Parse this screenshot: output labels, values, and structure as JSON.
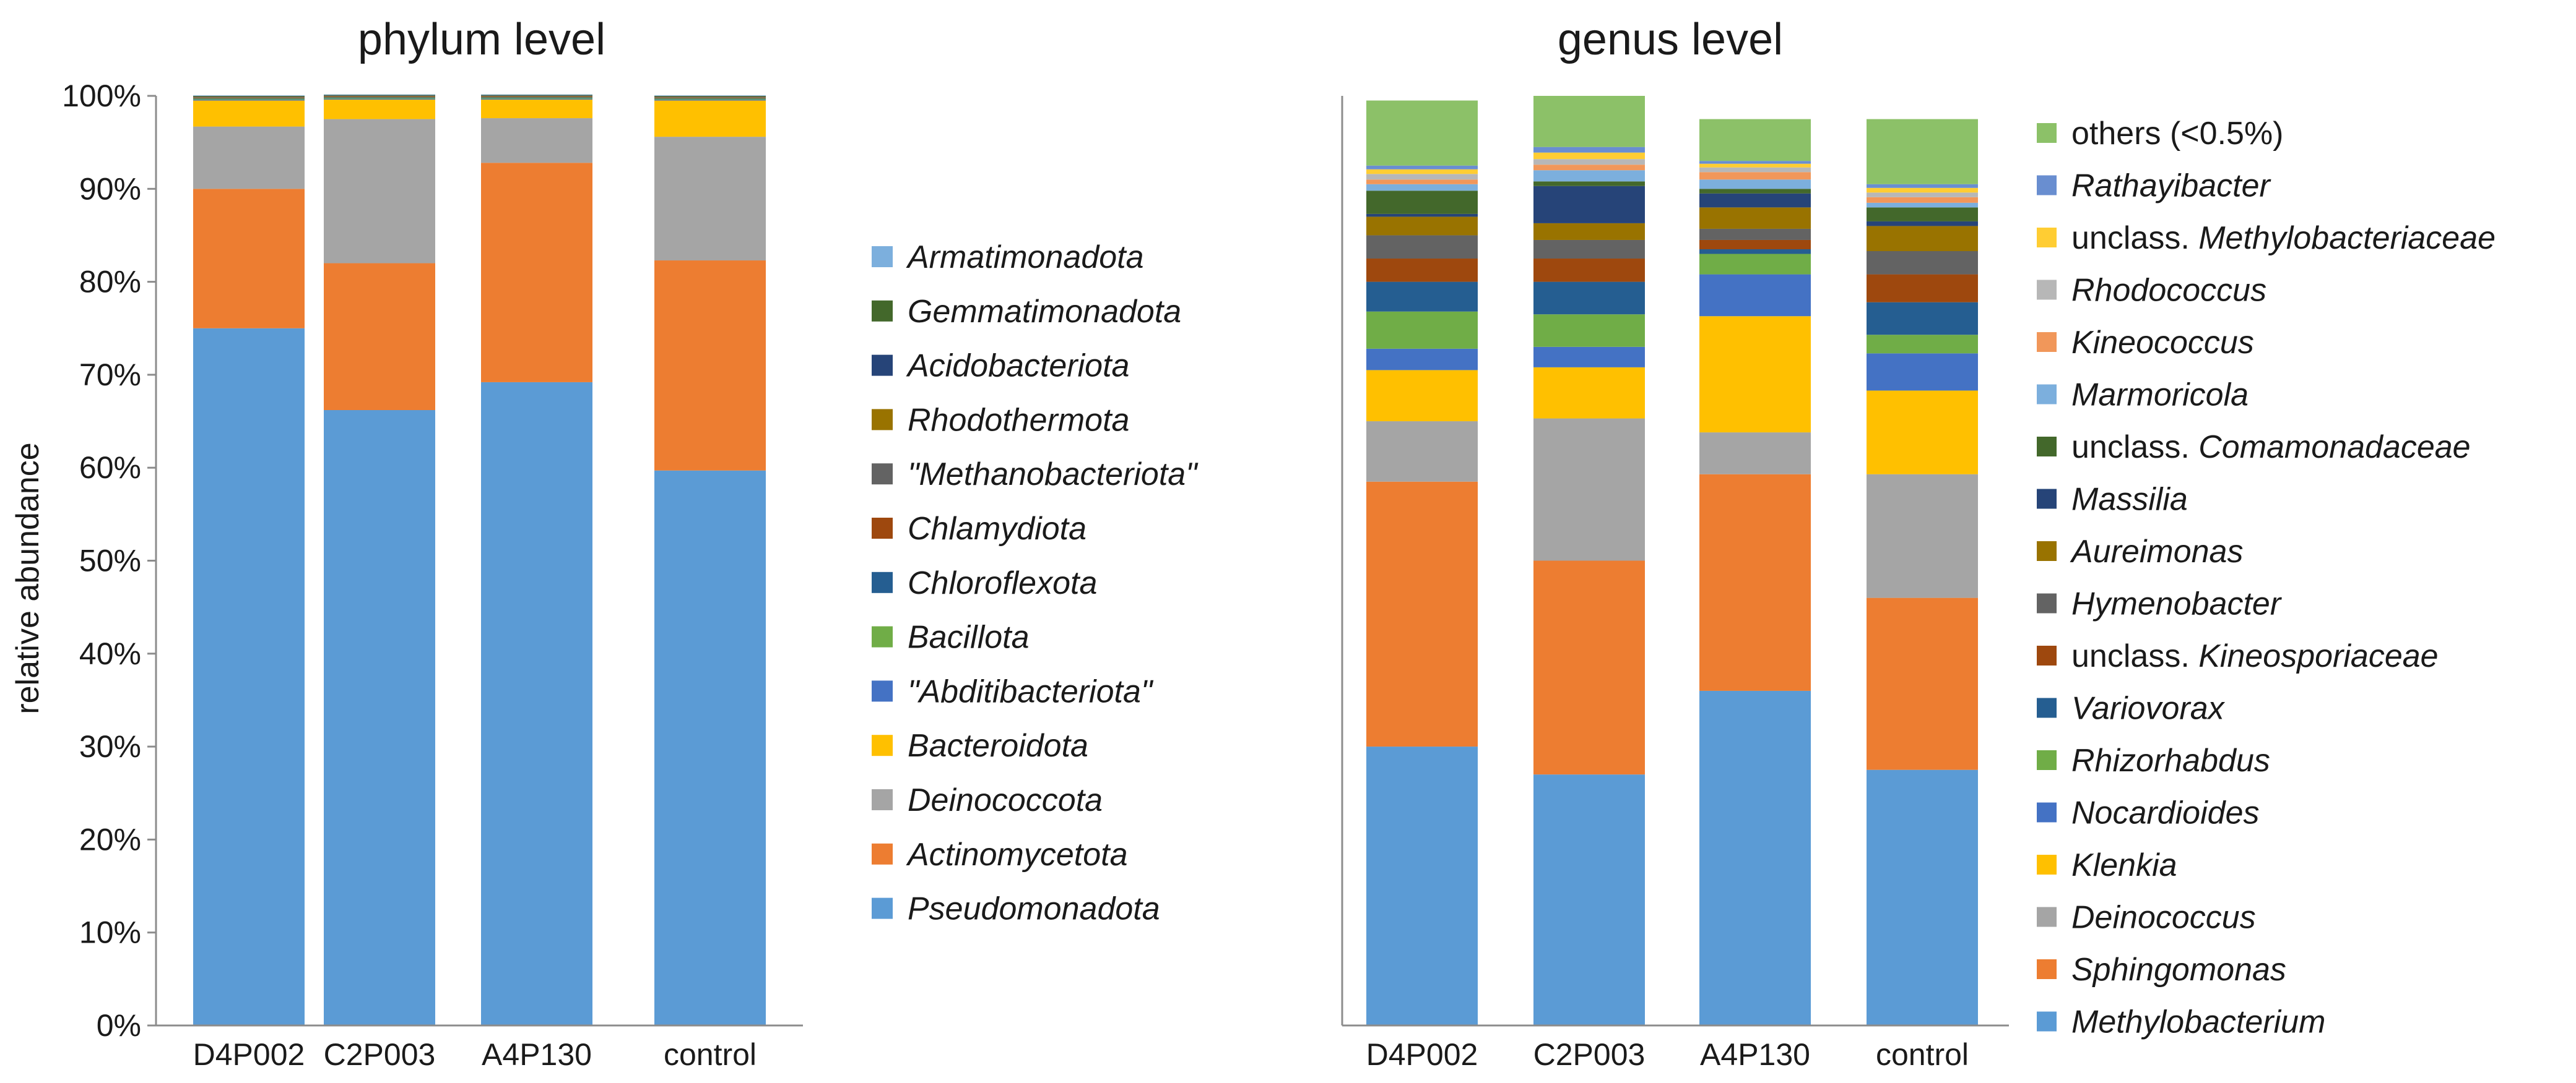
{
  "chart_data": [
    {
      "type": "bar",
      "stacked": true,
      "title": "phylum level",
      "ylabel": "relative abundance",
      "xlabel": "",
      "ylim": [
        0,
        100
      ],
      "y_tick_labels": [
        "0%",
        "10%",
        "20%",
        "30%",
        "40%",
        "50%",
        "60%",
        "70%",
        "80%",
        "90%",
        "100%"
      ],
      "grid": false,
      "legend_position": "right",
      "categories": [
        "D4P002",
        "C2P003",
        "A4P130",
        "control"
      ],
      "series": [
        {
          "name": "Pseudomonadota",
          "color": "#5b9bd5",
          "values": [
            75.0,
            66.2,
            69.2,
            59.7
          ]
        },
        {
          "name": "Actinomycetota",
          "color": "#ed7d31",
          "values": [
            15.0,
            15.8,
            23.6,
            22.6
          ]
        },
        {
          "name": "Deinococcota",
          "color": "#a5a5a5",
          "values": [
            6.7,
            15.5,
            4.8,
            13.3
          ]
        },
        {
          "name": "Bacteroidota",
          "color": "#ffc000",
          "values": [
            2.8,
            2.1,
            2.0,
            3.9
          ]
        },
        {
          "name": "\"Abditibacteriota\"",
          "color": "#4472c4",
          "values": [
            0.1,
            0.1,
            0.1,
            0.1
          ]
        },
        {
          "name": "Bacillota",
          "color": "#70ad47",
          "values": [
            0.1,
            0.1,
            0.1,
            0.1
          ]
        },
        {
          "name": "Chloroflexota",
          "color": "#255e91",
          "values": [
            0.05,
            0.05,
            0.05,
            0.05
          ]
        },
        {
          "name": "Chlamydiota",
          "color": "#9e480e",
          "values": [
            0.05,
            0.05,
            0.05,
            0.05
          ]
        },
        {
          "name": "\"Methanobacteriota\"",
          "color": "#636363",
          "values": [
            0.05,
            0.05,
            0.05,
            0.05
          ]
        },
        {
          "name": "Rhodothermota",
          "color": "#997300",
          "values": [
            0.05,
            0.05,
            0.05,
            0.05
          ]
        },
        {
          "name": "Acidobacteriota",
          "color": "#264478",
          "values": [
            0.05,
            0.05,
            0.05,
            0.05
          ]
        },
        {
          "name": "Gemmatimonadota",
          "color": "#43682b",
          "values": [
            0.05,
            0.05,
            0.05,
            0.05
          ]
        },
        {
          "name": "Armatimonadota",
          "color": "#7cafdd",
          "values": [
            0.05,
            0.05,
            0.05,
            0.05
          ]
        }
      ]
    },
    {
      "type": "bar",
      "stacked": true,
      "title": "genus level",
      "ylabel": "",
      "xlabel": "",
      "ylim": [
        0,
        100
      ],
      "grid": false,
      "legend_position": "right",
      "categories": [
        "D4P002",
        "C2P003",
        "A4P130",
        "control"
      ],
      "series": [
        {
          "name": "Methylobacterium",
          "color": "#5b9bd5",
          "values": [
            30.0,
            27.0,
            36.0,
            27.5
          ]
        },
        {
          "name": "Sphingomonas",
          "color": "#ed7d31",
          "values": [
            28.5,
            23.0,
            23.3,
            18.5
          ]
        },
        {
          "name": "Deinococcus",
          "color": "#a5a5a5",
          "values": [
            6.5,
            15.3,
            4.5,
            13.3
          ]
        },
        {
          "name": "Klenkia",
          "color": "#ffc000",
          "values": [
            5.5,
            5.5,
            12.5,
            9.0
          ]
        },
        {
          "name": "Nocardioides",
          "color": "#4472c4",
          "values": [
            2.3,
            2.2,
            4.5,
            4.0
          ]
        },
        {
          "name": "Rhizorhabdus",
          "color": "#70ad47",
          "values": [
            4.0,
            3.5,
            2.2,
            2.0
          ]
        },
        {
          "name": "Variovorax",
          "color": "#255e91",
          "values": [
            3.2,
            3.5,
            0.5,
            3.5
          ]
        },
        {
          "name": "unclass. Kineosporiaceae",
          "color": "#9e480e",
          "values": [
            2.5,
            2.5,
            1.0,
            3.0
          ]
        },
        {
          "name": "Hymenobacter",
          "color": "#636363",
          "values": [
            2.5,
            2.0,
            1.2,
            2.5
          ]
        },
        {
          "name": "Aureimonas",
          "color": "#997300",
          "values": [
            2.0,
            1.8,
            2.3,
            2.7
          ]
        },
        {
          "name": "Massilia",
          "color": "#264478",
          "values": [
            0.3,
            4.0,
            1.5,
            0.5
          ]
        },
        {
          "name": "unclass. Comamonadaceae",
          "color": "#43682b",
          "values": [
            2.5,
            0.5,
            0.5,
            1.5
          ]
        },
        {
          "name": "Marmoricola",
          "color": "#7cafdd",
          "values": [
            0.7,
            1.2,
            1.0,
            0.5
          ]
        },
        {
          "name": "Kineococcus",
          "color": "#f1975a",
          "values": [
            0.5,
            0.6,
            0.8,
            0.6
          ]
        },
        {
          "name": "Rhodococcus",
          "color": "#b7b7b7",
          "values": [
            0.6,
            0.6,
            0.5,
            0.5
          ]
        },
        {
          "name": "unclass. Methylobacteriaceae",
          "color": "#ffcd33",
          "values": [
            0.5,
            0.7,
            0.4,
            0.5
          ]
        },
        {
          "name": "Rathayibacter",
          "color": "#698ed0",
          "values": [
            0.4,
            0.6,
            0.3,
            0.4
          ]
        },
        {
          "name": "others (<0.5%)",
          "color": "#8cc168",
          "values": [
            7.0,
            5.5,
            4.5,
            7.0
          ]
        }
      ]
    }
  ]
}
